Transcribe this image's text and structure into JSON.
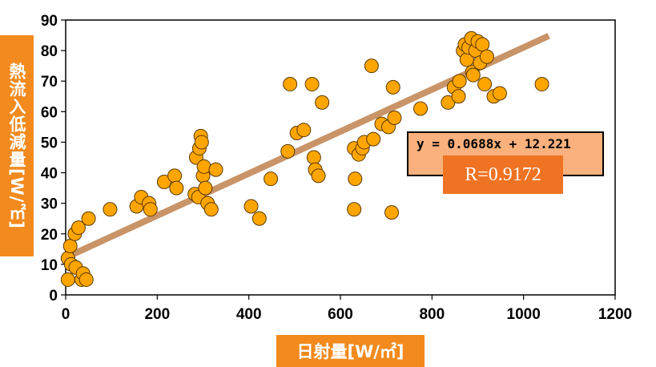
{
  "chart_data": {
    "type": "scatter",
    "xlabel": "日射量[W/㎡]",
    "ylabel": "熱流入低減量[W/㎡]",
    "xlim": [
      0,
      1200
    ],
    "ylim": [
      0,
      90
    ],
    "xticks": [
      0,
      200,
      400,
      600,
      800,
      1000,
      1200
    ],
    "yticks": [
      0,
      10,
      20,
      30,
      40,
      50,
      60,
      70,
      80,
      90
    ],
    "grid": false,
    "marker_color": "#ffa500",
    "marker_edge": "#5a3a00",
    "trendline_color": "#c89468",
    "trendline": {
      "slope": 0.0688,
      "intercept": 12.221,
      "x_range": [
        5,
        1055
      ]
    },
    "equation": "y = 0.0688x + 12.221",
    "r_value": "R=0.9172",
    "points": [
      [
        5,
        12
      ],
      [
        5,
        5
      ],
      [
        10,
        16
      ],
      [
        12,
        10
      ],
      [
        20,
        20
      ],
      [
        22,
        9
      ],
      [
        28,
        22
      ],
      [
        35,
        5
      ],
      [
        38,
        7
      ],
      [
        45,
        5
      ],
      [
        50,
        25
      ],
      [
        97,
        28
      ],
      [
        155,
        29
      ],
      [
        165,
        32
      ],
      [
        182,
        30
      ],
      [
        185,
        28
      ],
      [
        215,
        37
      ],
      [
        238,
        39
      ],
      [
        242,
        35
      ],
      [
        282,
        33
      ],
      [
        285,
        45
      ],
      [
        290,
        32
      ],
      [
        292,
        48
      ],
      [
        295,
        52
      ],
      [
        297,
        50
      ],
      [
        300,
        39
      ],
      [
        302,
        42
      ],
      [
        305,
        35
      ],
      [
        310,
        30
      ],
      [
        318,
        28
      ],
      [
        328,
        41
      ],
      [
        405,
        29
      ],
      [
        423,
        25
      ],
      [
        448,
        38
      ],
      [
        485,
        47
      ],
      [
        490,
        69
      ],
      [
        505,
        53
      ],
      [
        520,
        54
      ],
      [
        538,
        69
      ],
      [
        542,
        45
      ],
      [
        545,
        41
      ],
      [
        552,
        39
      ],
      [
        560,
        63
      ],
      [
        630,
        48
      ],
      [
        632,
        38
      ],
      [
        630,
        28
      ],
      [
        640,
        46
      ],
      [
        648,
        48
      ],
      [
        652,
        50
      ],
      [
        668,
        75
      ],
      [
        672,
        51
      ],
      [
        690,
        56
      ],
      [
        705,
        55
      ],
      [
        712,
        27
      ],
      [
        715,
        68
      ],
      [
        718,
        58
      ],
      [
        775,
        61
      ],
      [
        835,
        63
      ],
      [
        848,
        68
      ],
      [
        858,
        65
      ],
      [
        860,
        70
      ],
      [
        868,
        80
      ],
      [
        872,
        82
      ],
      [
        876,
        77
      ],
      [
        880,
        81
      ],
      [
        886,
        84
      ],
      [
        888,
        73
      ],
      [
        890,
        72
      ],
      [
        895,
        80
      ],
      [
        900,
        83
      ],
      [
        905,
        76
      ],
      [
        910,
        82
      ],
      [
        915,
        69
      ],
      [
        920,
        78
      ],
      [
        935,
        65
      ],
      [
        948,
        66
      ],
      [
        1040,
        69
      ]
    ]
  }
}
